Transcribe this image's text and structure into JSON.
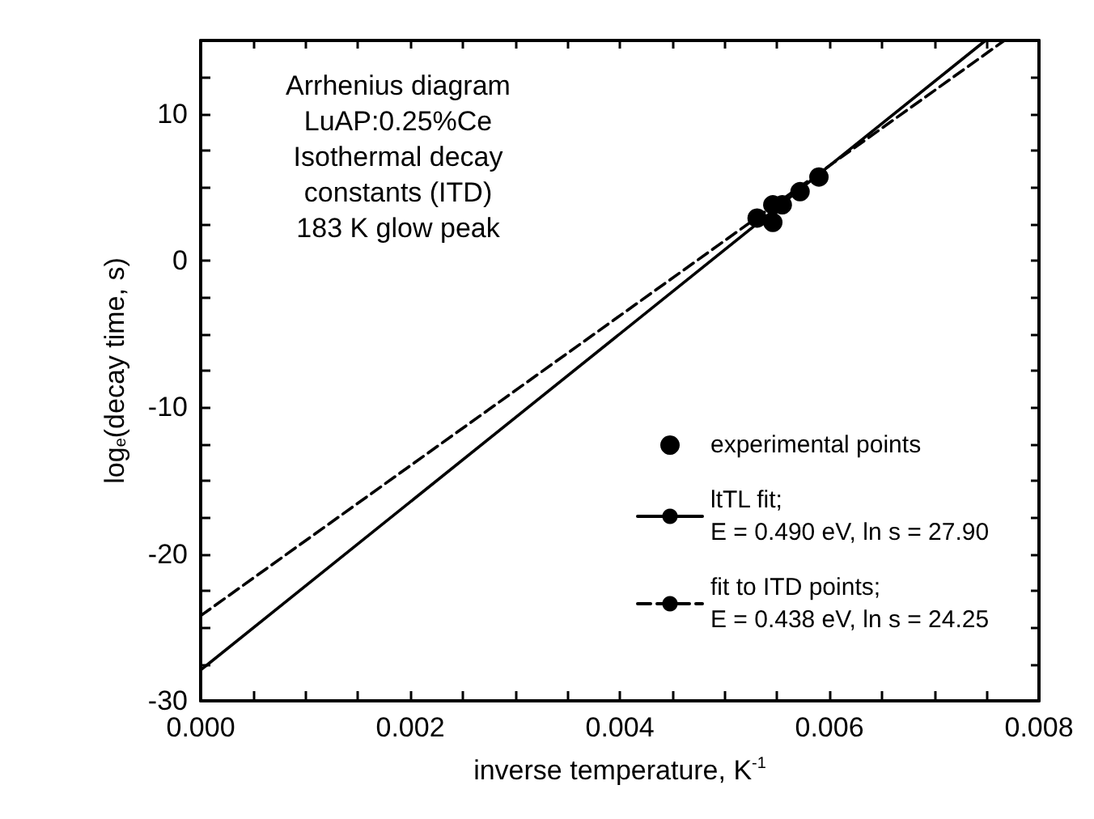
{
  "chart_data": {
    "type": "scatter",
    "title": "Arrhenius diagram",
    "annotations": [
      "LuAP:0.25%Ce",
      "Isothermal decay",
      "constants (ITD)",
      "183 K glow peak"
    ],
    "xlabel": "inverse temperature, K$^{-1}$",
    "ylabel": "log$_{e}$(decay time, s)",
    "xlim": [
      0,
      0.008
    ],
    "xticks": [
      {
        "value": 0,
        "label": "0.000"
      },
      {
        "value": 0.0005,
        "label": null
      },
      {
        "value": 0.001,
        "label": null
      },
      {
        "value": 0.0015,
        "label": null
      },
      {
        "value": 0.002,
        "label": "0.002"
      },
      {
        "value": 0.0025,
        "label": null
      },
      {
        "value": 0.003,
        "label": null
      },
      {
        "value": 0.0035,
        "label": null
      },
      {
        "value": 0.004,
        "label": "0.004"
      },
      {
        "value": 0.0045,
        "label": null
      },
      {
        "value": 0.005,
        "label": null
      },
      {
        "value": 0.0055,
        "label": null
      },
      {
        "value": 0.006,
        "label": "0.006"
      },
      {
        "value": 0.0065,
        "label": null
      },
      {
        "value": 0.007,
        "label": null
      },
      {
        "value": 0.0075,
        "label": null
      },
      {
        "value": 0.008,
        "label": "0.008"
      }
    ],
    "ylim": [
      -30,
      15
    ],
    "yticks": [
      -30,
      {
        "value": -27.5,
        "label": null
      },
      {
        "value": -25,
        "label": null
      },
      {
        "value": -22.5,
        "label": null
      },
      -20,
      {
        "value": -17.5,
        "label": null
      },
      {
        "value": -15,
        "label": null
      },
      {
        "value": -12.5,
        "label": null
      },
      -10,
      {
        "value": -7.5,
        "label": null
      },
      {
        "value": -5,
        "label": null
      },
      {
        "value": -2.5,
        "label": null
      },
      0,
      {
        "value": 2.5,
        "label": null
      },
      {
        "value": 5,
        "label": null
      },
      {
        "value": 7.5,
        "label": null
      },
      10,
      {
        "value": 12.5,
        "label": null
      },
      {
        "value": 15,
        "label": null
      }
    ],
    "grid": false,
    "legend": "bottom right",
    "series": [
      {
        "name": "experimental points",
        "marker": "circle",
        "color": "#000000",
        "x": [
          0.00531,
          0.00546,
          0.00546,
          0.00555,
          0.00572,
          0.0059
        ],
        "values": [
          2.9,
          3.8,
          2.6,
          3.8,
          4.7,
          5.7
        ]
      },
      {
        "name": "ltTL fit;\nE = 0.490 eV, ln s = 27.90",
        "type": "line",
        "line_style": "solid",
        "color": "#000000",
        "x": [
          0,
          0.00749
        ],
        "values": [
          -27.9,
          15
        ]
      },
      {
        "name": "fit to ITD points;\nE = 0.438 eV, ln s = 24.25",
        "type": "line",
        "line_style": "dashed",
        "color": "#000000",
        "x": [
          0,
          0.00767
        ],
        "values": [
          -24.2,
          15
        ]
      }
    ]
  }
}
